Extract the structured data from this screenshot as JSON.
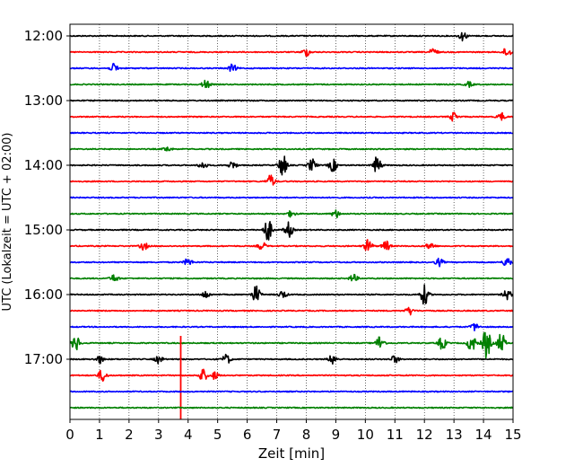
{
  "chart_data": {
    "type": "line",
    "title": "",
    "xlabel": "Zeit  [min]",
    "ylabel": "UTC (Lokalzeit = UTC + 02:00)",
    "xlim": [
      0,
      15
    ],
    "x_ticks": [
      0,
      1,
      2,
      3,
      4,
      5,
      6,
      7,
      8,
      9,
      10,
      11,
      12,
      13,
      14,
      15
    ],
    "y_tick_labels": [
      "12:00",
      "13:00",
      "14:00",
      "15:00",
      "16:00",
      "17:00"
    ],
    "trace_interval_min": 15,
    "grid": "vertical dotted at each minute",
    "color_cycle": [
      "#000000",
      "#ff0000",
      "#0000ff",
      "#008000"
    ],
    "traces": [
      {
        "time": "12:00",
        "events": [
          {
            "t": 13.3,
            "amp": 0.35
          }
        ]
      },
      {
        "time": "12:15",
        "events": [
          {
            "t": 8.0,
            "amp": 0.3
          },
          {
            "t": 12.3,
            "amp": 0.3
          },
          {
            "t": 14.8,
            "amp": 0.4
          }
        ]
      },
      {
        "time": "12:30",
        "events": [
          {
            "t": 1.5,
            "amp": 0.35
          },
          {
            "t": 5.5,
            "amp": 0.3
          }
        ]
      },
      {
        "time": "12:45",
        "events": [
          {
            "t": 4.6,
            "amp": 0.35
          },
          {
            "t": 13.5,
            "amp": 0.2
          }
        ]
      },
      {
        "time": "13:00",
        "events": []
      },
      {
        "time": "13:15",
        "events": [
          {
            "t": 13.0,
            "amp": 0.35
          },
          {
            "t": 14.6,
            "amp": 0.3
          }
        ]
      },
      {
        "time": "13:30",
        "events": []
      },
      {
        "time": "13:45",
        "events": [
          {
            "t": 3.3,
            "amp": 0.2
          }
        ]
      },
      {
        "time": "14:00",
        "events": [
          {
            "t": 4.5,
            "amp": 0.3
          },
          {
            "t": 5.5,
            "amp": 0.3
          },
          {
            "t": 7.2,
            "amp": 0.9
          },
          {
            "t": 8.2,
            "amp": 0.5
          },
          {
            "t": 8.9,
            "amp": 0.5
          },
          {
            "t": 10.4,
            "amp": 0.7
          }
        ]
      },
      {
        "time": "14:15",
        "events": [
          {
            "t": 6.8,
            "amp": 0.5
          }
        ]
      },
      {
        "time": "14:30",
        "events": []
      },
      {
        "time": "14:45",
        "events": [
          {
            "t": 7.5,
            "amp": 0.25
          },
          {
            "t": 9.0,
            "amp": 0.3
          }
        ]
      },
      {
        "time": "15:00",
        "events": [
          {
            "t": 6.7,
            "amp": 0.9
          },
          {
            "t": 7.4,
            "amp": 0.6
          }
        ]
      },
      {
        "time": "15:15",
        "events": [
          {
            "t": 2.5,
            "amp": 0.3
          },
          {
            "t": 6.5,
            "amp": 0.3
          },
          {
            "t": 10.1,
            "amp": 0.5
          },
          {
            "t": 10.7,
            "amp": 0.4
          },
          {
            "t": 12.2,
            "amp": 0.3
          }
        ]
      },
      {
        "time": "15:30",
        "events": [
          {
            "t": 4.0,
            "amp": 0.3
          },
          {
            "t": 12.5,
            "amp": 0.3
          },
          {
            "t": 14.8,
            "amp": 0.4
          }
        ]
      },
      {
        "time": "15:45",
        "events": [
          {
            "t": 1.5,
            "amp": 0.3
          },
          {
            "t": 9.6,
            "amp": 0.3
          }
        ]
      },
      {
        "time": "16:00",
        "events": [
          {
            "t": 4.6,
            "amp": 0.3
          },
          {
            "t": 6.3,
            "amp": 0.7
          },
          {
            "t": 7.2,
            "amp": 0.3
          },
          {
            "t": 12.0,
            "amp": 0.8
          },
          {
            "t": 14.8,
            "amp": 0.4
          }
        ]
      },
      {
        "time": "16:15",
        "events": [
          {
            "t": 11.5,
            "amp": 0.3
          }
        ]
      },
      {
        "time": "16:30",
        "events": [
          {
            "t": 13.7,
            "amp": 0.3
          }
        ]
      },
      {
        "time": "16:45",
        "events": [
          {
            "t": 0.2,
            "amp": 0.6
          },
          {
            "t": 10.5,
            "amp": 0.6
          },
          {
            "t": 12.6,
            "amp": 0.5
          },
          {
            "t": 13.6,
            "amp": 0.7
          },
          {
            "t": 14.1,
            "amp": 1.2
          },
          {
            "t": 14.6,
            "amp": 0.8
          }
        ]
      },
      {
        "time": "17:00",
        "events": [
          {
            "t": 1.0,
            "amp": 0.3
          },
          {
            "t": 3.0,
            "amp": 0.3
          },
          {
            "t": 5.3,
            "amp": 0.4
          },
          {
            "t": 8.9,
            "amp": 0.4
          },
          {
            "t": 11.0,
            "amp": 0.3
          }
        ]
      },
      {
        "time": "17:15",
        "events": [
          {
            "t": 1.1,
            "amp": 0.5
          },
          {
            "t": 3.75,
            "amp": 6.0,
            "spike": true
          },
          {
            "t": 4.5,
            "amp": 0.5
          },
          {
            "t": 4.9,
            "amp": 0.3
          }
        ]
      },
      {
        "time": "17:30",
        "events": []
      },
      {
        "time": "17:45",
        "events": []
      }
    ]
  }
}
